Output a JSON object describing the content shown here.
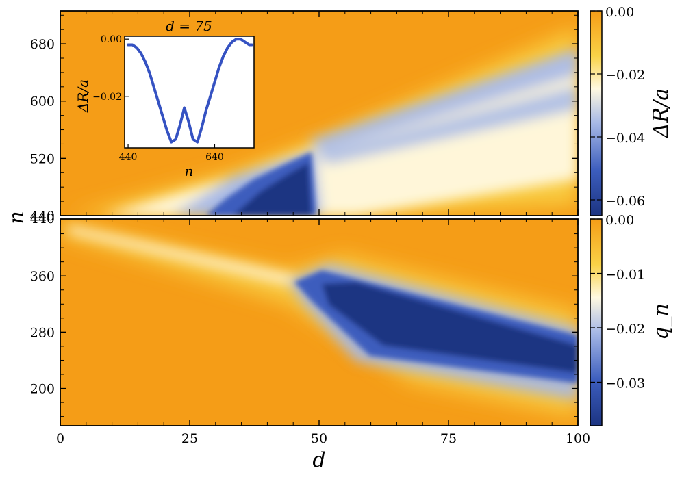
{
  "colors": {
    "orange": "#f59d17",
    "yellow": "#f9d247",
    "cream": "#fff9e1",
    "white": "#ffffff",
    "light_blue": "#a6b8e6",
    "mid_blue": "#3c5dbd",
    "dark_blue": "#1c3482",
    "inset_line": "#3552c2"
  },
  "chart_data": [
    {
      "name": "top-panel",
      "type": "heatmap",
      "xlabel": "",
      "ylabel": "n",
      "xlim": [
        0,
        100
      ],
      "ylim": [
        440,
        726
      ],
      "yticks": [
        440,
        520,
        600,
        680
      ],
      "ytick_labels": [
        "440",
        "520",
        "600",
        "680"
      ],
      "colorbar": {
        "label": "ΔR/a",
        "range": [
          -0.065,
          0.0
        ],
        "ticks": [
          0.0,
          -0.02,
          -0.04,
          -0.06
        ],
        "tick_labels": [
          "0.00",
          "−0.02",
          "−0.04",
          "−0.06"
        ]
      },
      "features": [
        {
          "kind": "dip-region",
          "description_points_d_n": [
            [
              28,
              440
            ],
            [
              40,
              480
            ],
            [
              48,
              530
            ],
            [
              50,
              440
            ]
          ],
          "min_value": -0.065
        },
        {
          "kind": "branch",
          "from": [
            48,
            530
          ],
          "to": [
            100,
            660
          ],
          "value": -0.04
        },
        {
          "kind": "branch",
          "from": [
            48,
            530
          ],
          "to": [
            100,
            620
          ],
          "value": -0.035
        },
        {
          "kind": "branch",
          "from": [
            50,
            500
          ],
          "to": [
            100,
            590
          ],
          "value": -0.01
        }
      ],
      "inset": {
        "title": "d = 75",
        "xlabel": "n",
        "ylabel": "ΔR/a",
        "xticks": [
          440,
          640
        ],
        "yticks": [
          0.0,
          -0.02
        ],
        "ytick_labels": [
          "0.00",
          "−0.02"
        ],
        "xlim": [
          432,
          731
        ],
        "ylim": [
          -0.038,
          0.001
        ],
        "x": [
          440,
          450,
          460,
          470,
          480,
          490,
          500,
          510,
          520,
          530,
          540,
          550,
          560,
          570,
          580,
          590,
          600,
          610,
          620,
          630,
          640,
          650,
          660,
          670,
          680,
          690,
          700,
          710,
          720,
          726
        ],
        "y": [
          -0.002,
          -0.002,
          -0.003,
          -0.005,
          -0.008,
          -0.012,
          -0.017,
          -0.022,
          -0.027,
          -0.032,
          -0.036,
          -0.035,
          -0.03,
          -0.024,
          -0.029,
          -0.035,
          -0.036,
          -0.031,
          -0.025,
          -0.02,
          -0.015,
          -0.01,
          -0.006,
          -0.003,
          -0.001,
          0.0,
          0.0,
          -0.001,
          -0.002,
          -0.002
        ]
      }
    },
    {
      "name": "bottom-panel",
      "type": "heatmap",
      "xlabel": "d",
      "ylabel": "",
      "xlim": [
        0,
        100
      ],
      "ylim": [
        147,
        441
      ],
      "xticks": [
        0,
        25,
        50,
        75,
        100
      ],
      "xtick_labels": [
        "0",
        "25",
        "50",
        "75",
        "100"
      ],
      "yticks": [
        200,
        280,
        360
      ],
      "ytick_labels": [
        "200",
        "280",
        "360"
      ],
      "colorbar": {
        "label": "q_n",
        "range": [
          -0.038,
          0.0
        ],
        "ticks": [
          0.0,
          -0.01,
          -0.02,
          -0.03
        ],
        "tick_labels": [
          "0.00",
          "−0.01",
          "−0.02",
          "−0.03"
        ]
      },
      "features": [
        {
          "kind": "ridge",
          "from": [
            0,
            440
          ],
          "to": [
            45,
            350
          ],
          "value": -0.002
        },
        {
          "kind": "dip-band",
          "from": [
            45,
            350
          ],
          "to": [
            100,
            240
          ],
          "value": -0.038
        }
      ]
    }
  ]
}
